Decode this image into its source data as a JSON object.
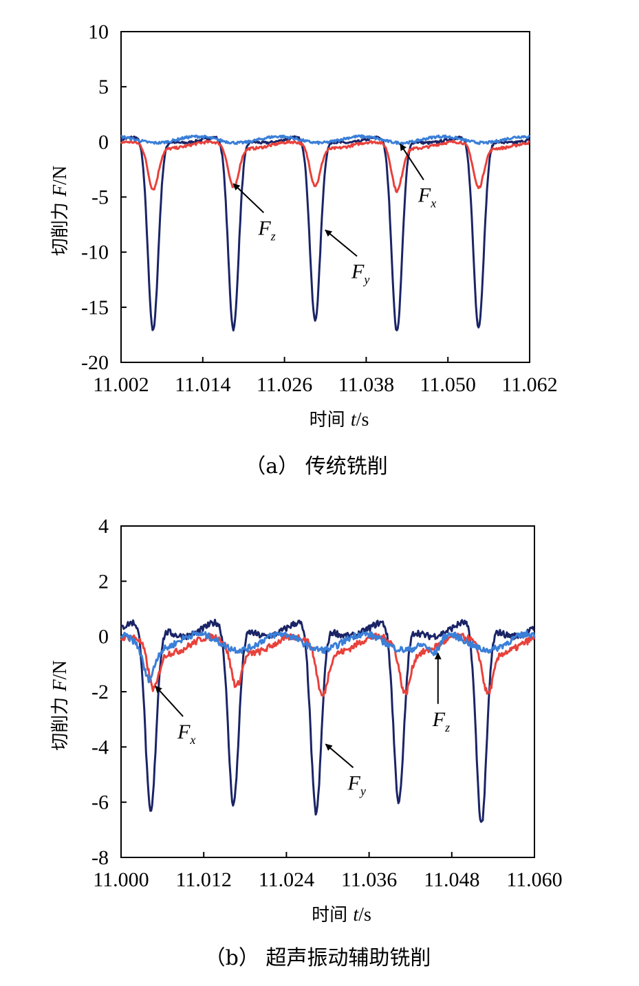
{
  "chart_data": [
    {
      "type": "line",
      "caption": "（a）  传统铣削",
      "xlabel": {
        "text": "时间 ",
        "var": "t",
        "unit": "/s"
      },
      "ylabel": {
        "text": "切削力 ",
        "var": "F",
        "unit": "/N"
      },
      "xlim": [
        11.002,
        11.062
      ],
      "ylim": [
        -20,
        10
      ],
      "xticks": [
        "11.002",
        "11.014",
        "11.026",
        "11.038",
        "11.050",
        "11.062"
      ],
      "yticks": [
        "10",
        "5",
        "0",
        "-5",
        "-10",
        "-15",
        "-20"
      ],
      "series": [
        {
          "name": "Fy",
          "color": "#1a2466",
          "baseline": 0.2,
          "peaks": [
            [
              11.0067,
              -17.3
            ],
            [
              11.0185,
              -17.2
            ],
            [
              11.0305,
              -16.4
            ],
            [
              11.0425,
              -17.4
            ],
            [
              11.0545,
              -17.0
            ]
          ]
        },
        {
          "name": "Fz",
          "color": "#e8413b",
          "baseline": -0.3,
          "peaks": [
            [
              11.0067,
              -4.2
            ],
            [
              11.0185,
              -4.1
            ],
            [
              11.0305,
              -3.9
            ],
            [
              11.0425,
              -4.4
            ],
            [
              11.0545,
              -4.1
            ]
          ]
        },
        {
          "name": "Fx",
          "color": "#3a7fd8",
          "baseline": 0.2,
          "peaks": []
        }
      ],
      "annotations": [
        {
          "label": "F",
          "sub": "z",
          "target": [
            11.0185,
            -3.8
          ]
        },
        {
          "label": "F",
          "sub": "y",
          "target": [
            11.032,
            -8.0
          ]
        },
        {
          "label": "F",
          "sub": "x",
          "target": [
            11.043,
            -0.2
          ]
        }
      ]
    },
    {
      "type": "line",
      "caption": "（b）  超声振动辅助铣削",
      "xlabel": {
        "text": "时间 ",
        "var": "t",
        "unit": "/s"
      },
      "ylabel": {
        "text": "切削力 ",
        "var": "F",
        "unit": "/N"
      },
      "xlim": [
        11.0,
        11.06
      ],
      "ylim": [
        -8,
        4
      ],
      "xticks": [
        "11.000",
        "11.012",
        "11.024",
        "11.036",
        "11.048",
        "11.060"
      ],
      "yticks": [
        "4",
        "2",
        "0",
        "-2",
        "-4",
        "-6",
        "-8"
      ],
      "series": [
        {
          "name": "Fy",
          "color": "#1a2466",
          "baseline": 0.3,
          "peaks": [
            [
              11.0043,
              -6.6
            ],
            [
              11.0163,
              -6.3
            ],
            [
              11.0283,
              -6.6
            ],
            [
              11.0403,
              -6.2
            ],
            [
              11.0523,
              -7.0
            ]
          ]
        },
        {
          "name": "Fz",
          "color": "#e8413b",
          "baseline": -0.3,
          "peaks": [
            [
              11.0047,
              -1.8
            ],
            [
              11.0167,
              -1.7
            ],
            [
              11.0292,
              -2.0
            ],
            [
              11.0412,
              -1.9
            ],
            [
              11.0532,
              -1.9
            ]
          ]
        },
        {
          "name": "Fx",
          "color": "#3a7fd8",
          "baseline": -0.2,
          "peaks": [
            [
              11.004,
              -1.3
            ],
            [
              11.0455,
              -0.8
            ]
          ]
        }
      ],
      "annotations": [
        {
          "label": "F",
          "sub": "x",
          "target": [
            11.005,
            -1.8
          ]
        },
        {
          "label": "F",
          "sub": "y",
          "target": [
            11.0297,
            -3.9
          ]
        },
        {
          "label": "F",
          "sub": "z",
          "target": [
            11.046,
            -0.6
          ]
        }
      ]
    }
  ]
}
